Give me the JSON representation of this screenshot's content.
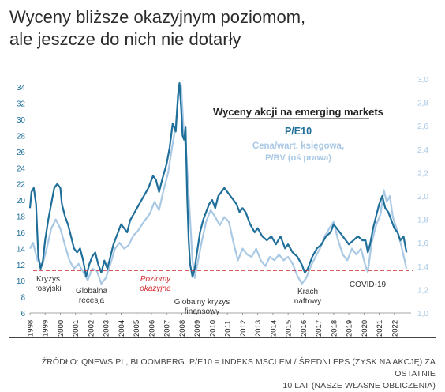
{
  "headline": {
    "line1": "Wyceny bliższe okazyjnym poziomom,",
    "line2": "ale jeszcze do nich nie dotarły"
  },
  "footer": {
    "line1": "ŹRÓDŁO: QNEWS.PL, BLOOMBERG. P/E10 = INDEKS MSCI EM / ŚREDNI EPS (ZYSK NA AKCJĘ) ZA OSTATNIE",
    "line2": "10 LAT (NASZE WŁASNE OBLICZENIA)"
  },
  "colors": {
    "pe10": "#1f6f9a",
    "pbv": "#a9c8e4",
    "threshold": "#d0262b",
    "title": "#222222",
    "annotation": "#333333"
  },
  "chart_data": {
    "type": "line",
    "title": "Wyceny akcji na emerging markets",
    "legend": [
      "P/E10",
      "Cena/wart. księgowa,",
      "P/BV (oś prawa)"
    ],
    "x_ticks": [
      "1998",
      "1999",
      "2000",
      "2001",
      "2002",
      "2003",
      "2004",
      "2005",
      "2006",
      "2007",
      "2008",
      "2009",
      "2010",
      "2011",
      "2012",
      "2013",
      "2014",
      "2015",
      "2016",
      "2017",
      "2018",
      "2019",
      "2020",
      "2021",
      "2022"
    ],
    "xlim": [
      1998,
      2023.1
    ],
    "y_left": {
      "ylim": [
        6,
        35
      ],
      "ticks": [
        6,
        8,
        10,
        12,
        14,
        16,
        18,
        20,
        22,
        24,
        26,
        28,
        30,
        32,
        34
      ]
    },
    "y_right": {
      "ylim": [
        1.0,
        3.0
      ],
      "ticks": [
        "1,0",
        "1,2",
        "1,4",
        "1,6",
        "1,8",
        "2,0",
        "2,2",
        "2,4",
        "2,6",
        "2,8",
        "3,0"
      ],
      "tick_values": [
        1.0,
        1.2,
        1.4,
        1.6,
        1.8,
        2.0,
        2.2,
        2.4,
        2.6,
        2.8,
        3.0
      ]
    },
    "threshold": {
      "value": 11.3,
      "axis": "left"
    },
    "series": [
      {
        "name": "P/E10",
        "axis": "left",
        "x": [
          1998.0,
          1998.1,
          1998.25,
          1998.4,
          1998.55,
          1998.7,
          1998.85,
          1999.0,
          1999.2,
          1999.4,
          1999.6,
          1999.8,
          2000.0,
          2000.1,
          2000.3,
          2000.5,
          2000.7,
          2000.9,
          2001.1,
          2001.3,
          2001.5,
          2001.7,
          2001.9,
          2002.1,
          2002.3,
          2002.5,
          2002.7,
          2002.9,
          2003.1,
          2003.3,
          2003.5,
          2003.8,
          2004.0,
          2004.2,
          2004.4,
          2004.6,
          2004.9,
          2005.2,
          2005.5,
          2005.8,
          2006.1,
          2006.3,
          2006.5,
          2006.7,
          2007.0,
          2007.2,
          2007.4,
          2007.6,
          2007.75,
          2007.85,
          2007.95,
          2008.05,
          2008.15,
          2008.25,
          2008.35,
          2008.45,
          2008.55,
          2008.7,
          2008.85,
          2009.0,
          2009.2,
          2009.4,
          2009.6,
          2009.8,
          2010.0,
          2010.2,
          2010.4,
          2010.6,
          2010.8,
          2011.0,
          2011.2,
          2011.4,
          2011.6,
          2011.8,
          2012.0,
          2012.2,
          2012.5,
          2012.8,
          2013.0,
          2013.3,
          2013.6,
          2013.9,
          2014.2,
          2014.5,
          2014.8,
          2015.0,
          2015.3,
          2015.6,
          2015.9,
          2016.1,
          2016.3,
          2016.6,
          2016.9,
          2017.2,
          2017.5,
          2017.8,
          2018.0,
          2018.2,
          2018.4,
          2018.6,
          2018.8,
          2019.0,
          2019.3,
          2019.6,
          2019.9,
          2020.1,
          2020.25,
          2020.4,
          2020.6,
          2020.8,
          2021.0,
          2021.2,
          2021.4,
          2021.6,
          2021.8,
          2022.0,
          2022.2,
          2022.4,
          2022.6,
          2022.8
        ],
        "values": [
          19.0,
          21.0,
          21.5,
          19.5,
          13.0,
          11.5,
          12.5,
          15.0,
          17.5,
          19.5,
          21.5,
          22.0,
          21.5,
          19.5,
          18.0,
          17.0,
          15.5,
          14.0,
          13.5,
          14.0,
          12.5,
          10.5,
          12.0,
          13.0,
          13.5,
          12.0,
          11.0,
          12.5,
          11.5,
          13.0,
          14.5,
          16.0,
          17.0,
          16.5,
          16.0,
          17.5,
          18.5,
          19.5,
          20.5,
          21.5,
          23.0,
          22.5,
          21.0,
          22.5,
          24.5,
          26.5,
          29.5,
          28.5,
          33.0,
          34.5,
          31.5,
          28.0,
          27.5,
          29.0,
          20.5,
          15.0,
          12.0,
          10.5,
          11.5,
          13.5,
          16.0,
          17.5,
          18.5,
          19.5,
          20.0,
          19.0,
          20.5,
          21.0,
          21.5,
          21.0,
          20.5,
          20.0,
          19.5,
          18.5,
          19.0,
          18.5,
          17.0,
          16.0,
          16.5,
          15.5,
          15.0,
          15.5,
          14.5,
          15.5,
          14.0,
          14.5,
          13.5,
          13.0,
          12.0,
          11.0,
          11.5,
          13.0,
          14.0,
          14.5,
          15.5,
          16.0,
          17.0,
          16.5,
          16.0,
          15.5,
          15.0,
          14.5,
          15.0,
          15.5,
          15.0,
          15.0,
          13.5,
          14.5,
          16.5,
          18.0,
          19.5,
          20.5,
          19.0,
          18.5,
          17.5,
          16.5,
          16.0,
          15.0,
          15.5,
          13.5
        ]
      },
      {
        "name": "P/BV",
        "axis": "right",
        "x": [
          1998.0,
          1998.2,
          1998.5,
          1998.8,
          1999.1,
          1999.4,
          1999.7,
          2000.0,
          2000.3,
          2000.6,
          2000.9,
          2001.2,
          2001.5,
          2001.8,
          2002.1,
          2002.4,
          2002.7,
          2003.0,
          2003.3,
          2003.6,
          2003.9,
          2004.2,
          2004.5,
          2004.8,
          2005.1,
          2005.5,
          2005.9,
          2006.2,
          2006.5,
          2006.8,
          2007.1,
          2007.4,
          2007.6,
          2007.8,
          2007.95,
          2008.1,
          2008.3,
          2008.5,
          2008.7,
          2008.85,
          2009.0,
          2009.3,
          2009.6,
          2009.9,
          2010.2,
          2010.5,
          2010.8,
          2011.1,
          2011.4,
          2011.7,
          2012.0,
          2012.3,
          2012.6,
          2012.9,
          2013.2,
          2013.5,
          2013.8,
          2014.1,
          2014.4,
          2014.7,
          2015.0,
          2015.3,
          2015.6,
          2015.9,
          2016.2,
          2016.5,
          2016.8,
          2017.1,
          2017.4,
          2017.7,
          2018.0,
          2018.3,
          2018.6,
          2018.9,
          2019.2,
          2019.5,
          2019.8,
          2020.1,
          2020.25,
          2020.5,
          2020.8,
          2021.1,
          2021.3,
          2021.5,
          2021.7,
          2021.9,
          2022.2,
          2022.5,
          2022.8
        ],
        "values": [
          1.55,
          1.6,
          1.45,
          1.4,
          1.55,
          1.72,
          1.8,
          1.72,
          1.58,
          1.45,
          1.38,
          1.42,
          1.35,
          1.28,
          1.38,
          1.36,
          1.25,
          1.3,
          1.42,
          1.55,
          1.6,
          1.55,
          1.58,
          1.66,
          1.7,
          1.78,
          1.85,
          1.95,
          1.88,
          2.05,
          2.2,
          2.45,
          2.6,
          2.9,
          2.95,
          2.6,
          2.35,
          1.9,
          1.45,
          1.3,
          1.4,
          1.6,
          1.78,
          1.88,
          1.82,
          1.75,
          1.82,
          1.78,
          1.6,
          1.45,
          1.55,
          1.5,
          1.48,
          1.55,
          1.45,
          1.4,
          1.48,
          1.45,
          1.5,
          1.45,
          1.48,
          1.42,
          1.32,
          1.25,
          1.3,
          1.4,
          1.48,
          1.55,
          1.65,
          1.72,
          1.78,
          1.62,
          1.5,
          1.45,
          1.55,
          1.5,
          1.55,
          1.4,
          1.35,
          1.6,
          1.75,
          1.85,
          2.05,
          1.95,
          2.0,
          1.82,
          1.7,
          1.55,
          1.38
        ]
      }
    ],
    "annotations": [
      {
        "key": "kryzys",
        "lines": [
          "Kryzys",
          "rosyjski"
        ]
      },
      {
        "key": "globalna",
        "lines": [
          "Globalna",
          "recesja"
        ]
      },
      {
        "key": "poziomy",
        "lines": [
          "Poziomy",
          "okazyjne"
        ]
      },
      {
        "key": "kryzys_fin",
        "lines": [
          "Globalny kryzys",
          "finansowy"
        ]
      },
      {
        "key": "krach",
        "lines": [
          "Krach",
          "naftowy"
        ]
      },
      {
        "key": "covid",
        "lines": [
          "COVID-19"
        ]
      }
    ]
  }
}
